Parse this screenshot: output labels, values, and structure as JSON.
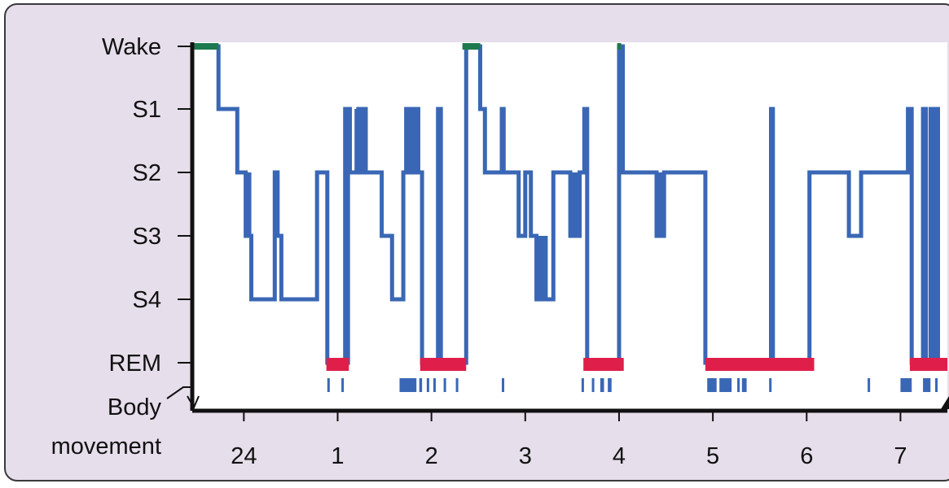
{
  "chart_data": {
    "type": "line",
    "title": "",
    "xlabel": "",
    "ylabel": "",
    "y_categories": [
      "Wake",
      "S1",
      "S2",
      "S3",
      "S4",
      "REM"
    ],
    "x_ticks": [
      {
        "label": "24",
        "value": 24
      },
      {
        "label": "1",
        "value": 25
      },
      {
        "label": "2",
        "value": 26
      },
      {
        "label": "3",
        "value": 27
      },
      {
        "label": "4",
        "value": 28
      },
      {
        "label": "5",
        "value": 29
      },
      {
        "label": "6",
        "value": 30
      },
      {
        "label": "7",
        "value": 31
      }
    ],
    "xlim": [
      23.45,
      31.5
    ],
    "body_movement_label": "Body\nmovement",
    "colors": {
      "hypnogram": "#3a67b5",
      "wake": "#1e7a4e",
      "rem": "#e01e4a",
      "movement": "#3a67b5",
      "plot_bg": "#ffffff",
      "frame_bg": "#e6deeb",
      "axis": "#111111"
    },
    "hypnogram": [
      {
        "x": 23.45,
        "stage": "Wake"
      },
      {
        "x": 23.73,
        "stage": "S1"
      },
      {
        "x": 23.93,
        "stage": "S2"
      },
      {
        "x": 24.02,
        "stage": "S3"
      },
      {
        "x": 24.08,
        "stage": "S4"
      },
      {
        "x": 24.27,
        "stage": "S4"
      },
      {
        "x": 24.33,
        "stage": "S2"
      },
      {
        "x": 24.36,
        "stage": "S3"
      },
      {
        "x": 24.4,
        "stage": "S4"
      },
      {
        "x": 24.78,
        "stage": "S2"
      },
      {
        "x": 24.87,
        "stage": "S2"
      },
      {
        "x": 24.89,
        "stage": "REM"
      },
      {
        "x": 25.08,
        "stage": "S1"
      },
      {
        "x": 25.1,
        "stage": "REM"
      },
      {
        "x": 25.11,
        "stage": "S1"
      },
      {
        "x": 25.13,
        "stage": "S2"
      },
      {
        "x": 25.18,
        "stage": "S2"
      },
      {
        "x": 25.22,
        "stage": "S1"
      },
      {
        "x": 25.26,
        "stage": "S2"
      },
      {
        "x": 25.28,
        "stage": "S1"
      },
      {
        "x": 25.3,
        "stage": "S2"
      },
      {
        "x": 25.47,
        "stage": "S3"
      },
      {
        "x": 25.58,
        "stage": "S4"
      },
      {
        "x": 25.7,
        "stage": "S2"
      },
      {
        "x": 25.73,
        "stage": "S1"
      },
      {
        "x": 25.76,
        "stage": "S2"
      },
      {
        "x": 25.78,
        "stage": "S1"
      },
      {
        "x": 25.81,
        "stage": "S2"
      },
      {
        "x": 25.83,
        "stage": "S1"
      },
      {
        "x": 25.86,
        "stage": "S2"
      },
      {
        "x": 25.9,
        "stage": "REM"
      },
      {
        "x": 26.07,
        "stage": "S1"
      },
      {
        "x": 26.1,
        "stage": "REM"
      },
      {
        "x": 26.37,
        "stage": "Wake"
      },
      {
        "x": 26.52,
        "stage": "S1"
      },
      {
        "x": 26.57,
        "stage": "S2"
      },
      {
        "x": 26.75,
        "stage": "S1"
      },
      {
        "x": 26.77,
        "stage": "S2"
      },
      {
        "x": 26.93,
        "stage": "S3"
      },
      {
        "x": 27.0,
        "stage": "S2"
      },
      {
        "x": 27.06,
        "stage": "S3"
      },
      {
        "x": 27.12,
        "stage": "S4"
      },
      {
        "x": 27.25,
        "stage": "S4"
      },
      {
        "x": 27.3,
        "stage": "S2"
      },
      {
        "x": 27.48,
        "stage": "S3"
      },
      {
        "x": 27.58,
        "stage": "S2"
      },
      {
        "x": 27.63,
        "stage": "S1"
      },
      {
        "x": 27.66,
        "stage": "REM"
      },
      {
        "x": 28.0,
        "stage": "Wake"
      },
      {
        "x": 28.04,
        "stage": "S2"
      },
      {
        "x": 28.4,
        "stage": "S3"
      },
      {
        "x": 28.48,
        "stage": "S2"
      },
      {
        "x": 28.92,
        "stage": "REM"
      },
      {
        "x": 29.62,
        "stage": "S1"
      },
      {
        "x": 29.64,
        "stage": "REM"
      },
      {
        "x": 30.03,
        "stage": "S2"
      },
      {
        "x": 30.45,
        "stage": "S3"
      },
      {
        "x": 30.58,
        "stage": "S2"
      },
      {
        "x": 31.03,
        "stage": "S2"
      },
      {
        "x": 31.08,
        "stage": "S1"
      },
      {
        "x": 31.12,
        "stage": "REM"
      },
      {
        "x": 31.24,
        "stage": "S1"
      },
      {
        "x": 31.27,
        "stage": "REM"
      },
      {
        "x": 31.32,
        "stage": "S1"
      },
      {
        "x": 31.35,
        "stage": "REM"
      },
      {
        "x": 31.37,
        "stage": "S1"
      },
      {
        "x": 31.4,
        "stage": "REM"
      },
      {
        "x": 31.5,
        "stage": "REM"
      }
    ],
    "dense_bands": [
      {
        "from": 24.02,
        "to": 24.08,
        "stage_from": "S2",
        "stage_to": "S3"
      },
      {
        "from": 25.18,
        "to": 25.3,
        "stage_from": "S1",
        "stage_to": "S2"
      },
      {
        "from": 25.73,
        "to": 25.86,
        "stage_from": "S1",
        "stage_to": "S2"
      },
      {
        "from": 27.1,
        "to": 27.24,
        "stage_from": "S3",
        "stage_to": "S4"
      },
      {
        "from": 27.5,
        "to": 27.6,
        "stage_from": "S2",
        "stage_to": "S3"
      },
      {
        "from": 28.38,
        "to": 28.47,
        "stage_from": "S2",
        "stage_to": "S3"
      }
    ],
    "wake_segments": [
      {
        "from": 23.45,
        "to": 23.73
      },
      {
        "from": 26.33,
        "to": 26.52
      },
      {
        "from": 27.98,
        "to": 28.02
      }
    ],
    "rem_periods": [
      {
        "from": 24.88,
        "to": 25.12
      },
      {
        "from": 25.88,
        "to": 26.37
      },
      {
        "from": 27.62,
        "to": 28.05
      },
      {
        "from": 28.92,
        "to": 30.08
      },
      {
        "from": 31.1,
        "to": 31.5
      }
    ],
    "body_movements": [
      {
        "from": 24.89,
        "to": 24.91
      },
      {
        "from": 25.04,
        "to": 25.06
      },
      {
        "from": 25.66,
        "to": 25.84
      },
      {
        "from": 25.87,
        "to": 25.9
      },
      {
        "from": 25.95,
        "to": 25.97
      },
      {
        "from": 26.02,
        "to": 26.04
      },
      {
        "from": 26.13,
        "to": 26.15
      },
      {
        "from": 26.26,
        "to": 26.28
      },
      {
        "from": 26.75,
        "to": 26.77
      },
      {
        "from": 27.6,
        "to": 27.62
      },
      {
        "from": 27.71,
        "to": 27.73
      },
      {
        "from": 27.8,
        "to": 27.84
      },
      {
        "from": 27.88,
        "to": 27.92
      },
      {
        "from": 28.94,
        "to": 29.04
      },
      {
        "from": 29.07,
        "to": 29.2
      },
      {
        "from": 29.26,
        "to": 29.28
      },
      {
        "from": 29.31,
        "to": 29.36
      },
      {
        "from": 29.6,
        "to": 29.62
      },
      {
        "from": 30.65,
        "to": 30.67
      },
      {
        "from": 31.0,
        "to": 31.12
      },
      {
        "from": 31.24,
        "to": 31.32
      },
      {
        "from": 31.37,
        "to": 31.39
      }
    ]
  }
}
